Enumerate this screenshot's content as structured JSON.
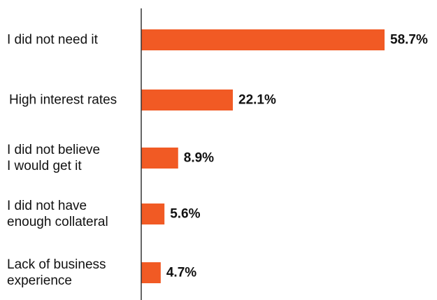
{
  "chart_data": {
    "type": "bar",
    "orientation": "horizontal",
    "categories": [
      "I did not need it",
      "High interest rates",
      "I did not believe I would get it",
      "I did not have enough collateral",
      "Lack of business experience"
    ],
    "category_lines": [
      [
        "I did not need it"
      ],
      [
        "High interest rates"
      ],
      [
        "I did not believe",
        "I would get it"
      ],
      [
        "I did not have",
        "enough collateral"
      ],
      [
        "Lack of business",
        "experience"
      ]
    ],
    "values": [
      58.7,
      22.1,
      8.9,
      5.6,
      4.7
    ],
    "value_labels": [
      "58.7%",
      "22.1%",
      "8.9%",
      "5.6%",
      "4.7%"
    ],
    "bar_color": "#f15a24",
    "axis_color": "#333333",
    "text_color": "#111111",
    "grid": false,
    "legend": "none",
    "xlim": [
      0,
      60
    ]
  }
}
